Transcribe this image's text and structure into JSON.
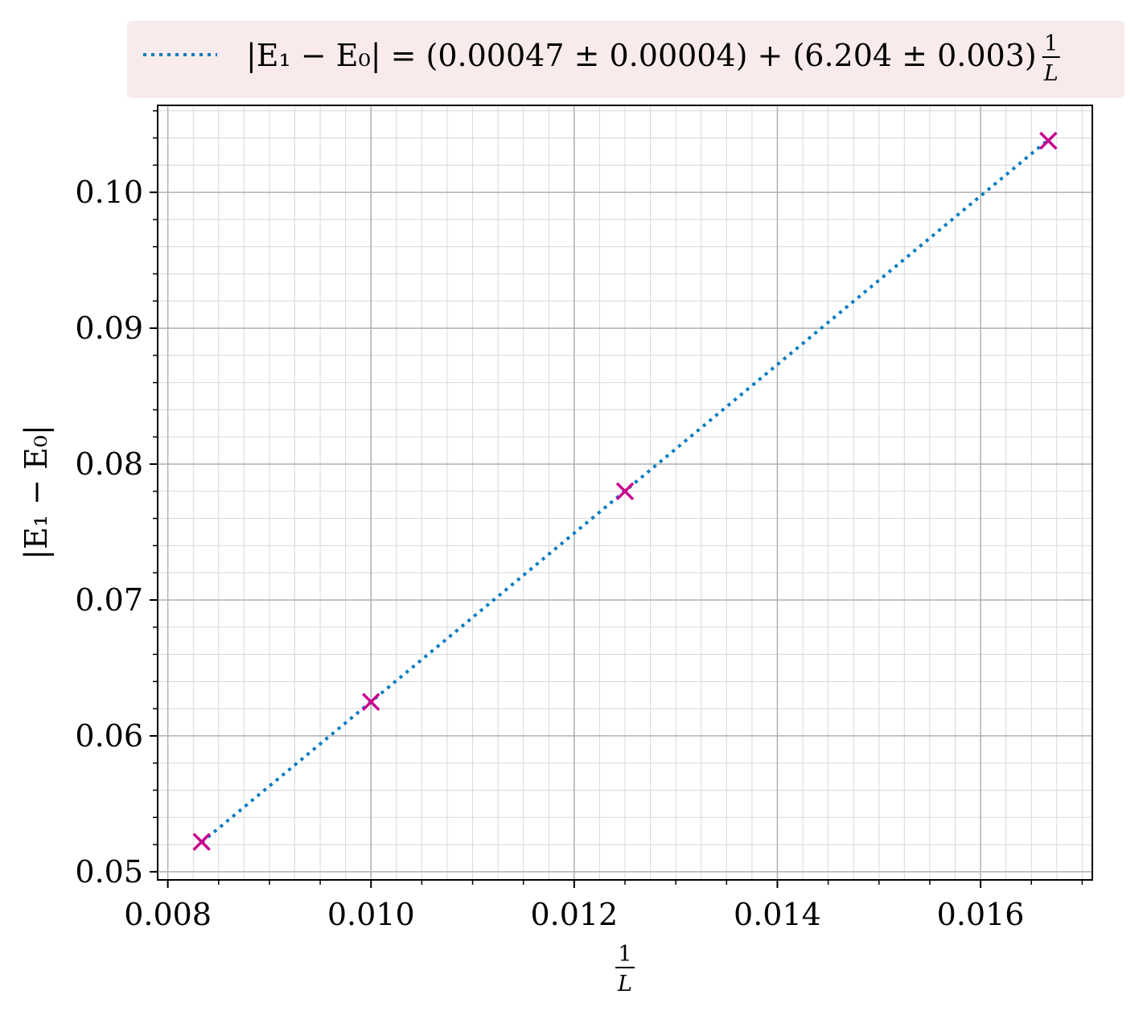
{
  "chart_data": {
    "type": "scatter",
    "xlabel": {
      "numerator": "1",
      "denominator": "L"
    },
    "ylabel": "|E₁ − E₀|",
    "xlim": [
      0.0079,
      0.0171
    ],
    "ylim": [
      0.0494,
      0.1064
    ],
    "x_ticks": [
      0.008,
      0.01,
      0.012,
      0.014,
      0.016
    ],
    "x_tick_labels": [
      "0.008",
      "0.010",
      "0.012",
      "0.014",
      "0.016"
    ],
    "y_ticks": [
      0.05,
      0.06,
      0.07,
      0.08,
      0.09,
      0.1
    ],
    "y_tick_labels": [
      "0.05",
      "0.06",
      "0.07",
      "0.08",
      "0.09",
      "0.10"
    ],
    "grid": true,
    "minor_grid": true,
    "legend_position": "above-plot-right",
    "series": [
      {
        "kind": "points",
        "marker": "x",
        "color": "#c8008f",
        "x": [
          0.008333,
          0.01,
          0.0125,
          0.016667
        ],
        "y": [
          0.0522,
          0.0625,
          0.078,
          0.1038
        ]
      },
      {
        "kind": "fit-line",
        "line_style": "dotted",
        "color": "#0a7dc2",
        "intercept": 0.00047,
        "slope": 6.204,
        "x": [
          0.008333,
          0.016667
        ]
      }
    ],
    "legend": {
      "lhs": "|E₁ − E₀| = (0.00047 ± 0.00004) + (6.204 ± 0.003)",
      "frac_numerator": "1",
      "frac_denominator": "L"
    }
  },
  "colors": {
    "legend_background": "#f9ebeb",
    "grid_major": "#b0b0b0",
    "grid_minor": "#d8d8d8"
  }
}
